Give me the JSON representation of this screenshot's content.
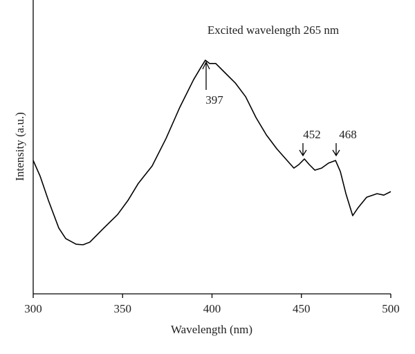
{
  "chart_data": {
    "type": "line",
    "xlabel": "Wavelength (nm)",
    "ylabel": "Intensity (a.u.)",
    "annotations": [
      "Excited wavelength 265 nm",
      "397",
      "452",
      "468"
    ],
    "xlim": [
      300,
      500
    ],
    "xticks": [
      300,
      350,
      400,
      450,
      500
    ],
    "ylim": [
      0,
      100
    ],
    "grid": false,
    "series": [
      {
        "color": "#000000",
        "x": [
          300,
          303.9,
          308.5,
          314.3,
          318.2,
          324,
          327.9,
          331.7,
          339.5,
          347.2,
          353,
          358.8,
          366.5,
          374.3,
          382,
          389.7,
          393.6,
          396.3,
          398.6,
          402.1,
          407.2,
          413,
          418.8,
          424.6,
          430.4,
          436.2,
          442,
          445.8,
          448.6,
          451.7,
          454.4,
          457.5,
          461.3,
          465.2,
          469.1,
          471.8,
          474.9,
          478.7,
          481.8,
          486.5,
          492.3,
          496.1,
          500
        ],
        "values": [
          45.4,
          40,
          31.8,
          22.4,
          18.8,
          16.9,
          16.7,
          17.6,
          22.4,
          27,
          31.8,
          37.6,
          43.5,
          52.9,
          63.5,
          72.9,
          76.9,
          79.5,
          78.4,
          78.4,
          75.3,
          71.8,
          67.1,
          60,
          54.1,
          49.4,
          45.4,
          42.8,
          44,
          45.9,
          44,
          42.1,
          42.8,
          44.5,
          45.4,
          41.6,
          34.1,
          26.6,
          29.4,
          32.9,
          34.1,
          33.6,
          34.8
        ]
      }
    ]
  }
}
